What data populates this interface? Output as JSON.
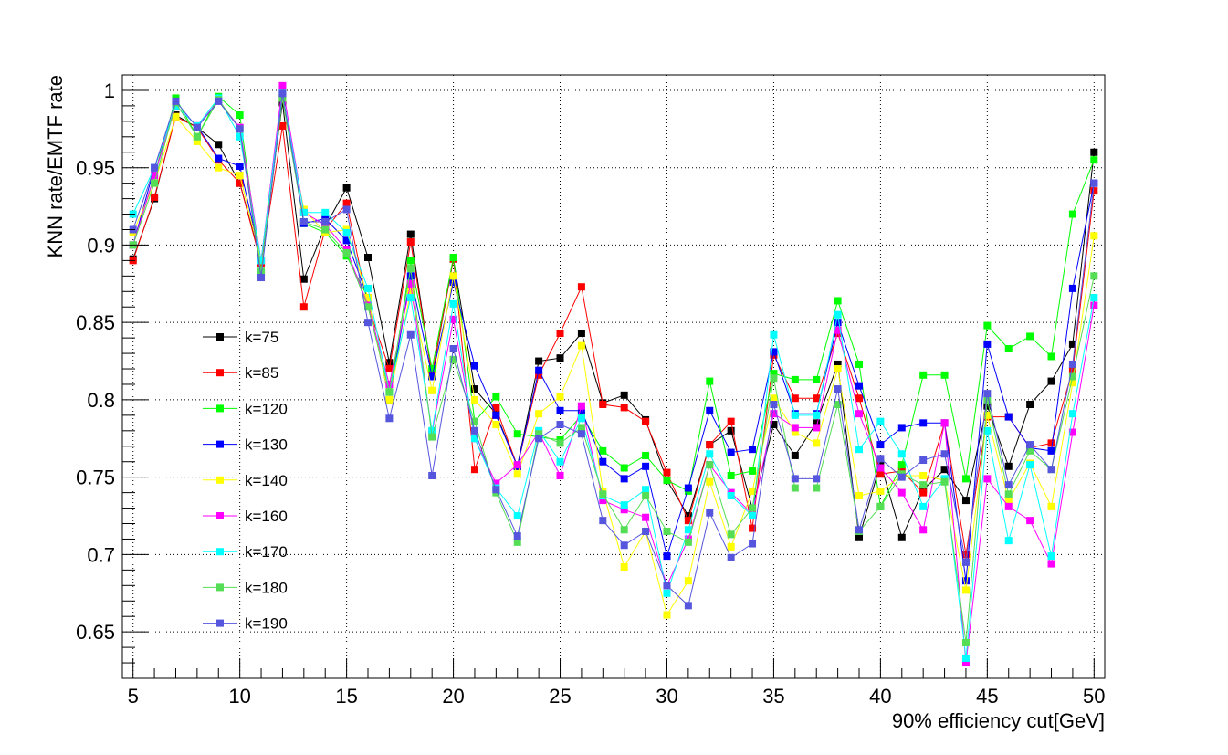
{
  "chart_data": {
    "type": "line",
    "title": "",
    "xlabel": "90% efficiency cut[GeV]",
    "ylabel": "KNN rate/EMTF rate",
    "xlim": [
      4.5,
      50.5
    ],
    "ylim": [
      0.62,
      1.01
    ],
    "grid": true,
    "legend_position": "center-left",
    "x_ticks": [
      5,
      10,
      15,
      20,
      25,
      30,
      35,
      40,
      45,
      50
    ],
    "y_ticks": [
      0.65,
      0.7,
      0.75,
      0.8,
      0.85,
      0.9,
      0.95,
      1
    ],
    "x_tick_labels": [
      "5",
      "10",
      "15",
      "20",
      "25",
      "30",
      "35",
      "40",
      "45",
      "50"
    ],
    "y_tick_labels": [
      "0.65",
      "0.7",
      "0.75",
      "0.8",
      "0.85",
      "0.9",
      "0.95",
      "1"
    ],
    "x": [
      5,
      6,
      7,
      8,
      9,
      10,
      11,
      12,
      13,
      14,
      15,
      16,
      17,
      18,
      19,
      20,
      21,
      22,
      23,
      24,
      25,
      26,
      27,
      28,
      29,
      30,
      31,
      32,
      33,
      34,
      35,
      36,
      37,
      38,
      39,
      40,
      41,
      42,
      43,
      44,
      45,
      46,
      47,
      48,
      49,
      50
    ],
    "series": [
      {
        "name": "k=75",
        "color": "#000000",
        "values": [
          0.891,
          0.93,
          0.984,
          0.976,
          0.965,
          0.94,
          0.889,
          0.992,
          0.878,
          0.912,
          0.937,
          0.892,
          0.824,
          0.907,
          0.815,
          0.891,
          0.807,
          0.791,
          0.757,
          0.825,
          0.827,
          0.843,
          0.798,
          0.803,
          0.787,
          0.748,
          0.725,
          0.771,
          0.78,
          0.73,
          0.784,
          0.764,
          0.785,
          0.823,
          0.711,
          0.759,
          0.711,
          0.742,
          0.755,
          0.735,
          0.796,
          0.757,
          0.797,
          0.812,
          0.836,
          0.96
        ]
      },
      {
        "name": "k=85",
        "color": "#ff0000",
        "values": [
          0.89,
          0.931,
          0.983,
          0.976,
          0.955,
          0.94,
          0.888,
          0.977,
          0.86,
          0.91,
          0.927,
          0.861,
          0.82,
          0.902,
          0.816,
          0.891,
          0.755,
          0.795,
          0.757,
          0.816,
          0.843,
          0.873,
          0.797,
          0.795,
          0.786,
          0.753,
          0.722,
          0.771,
          0.786,
          0.717,
          0.829,
          0.801,
          0.801,
          0.843,
          0.801,
          0.752,
          0.754,
          0.74,
          0.785,
          0.7,
          0.789,
          0.789,
          0.769,
          0.772,
          0.819,
          0.935
        ]
      },
      {
        "name": "k=120",
        "color": "#00ff00",
        "values": [
          0.9,
          0.945,
          0.995,
          0.97,
          0.996,
          0.984,
          0.882,
          0.995,
          0.914,
          0.908,
          0.893,
          0.866,
          0.8,
          0.89,
          0.82,
          0.892,
          0.786,
          0.802,
          0.778,
          0.776,
          0.774,
          0.79,
          0.767,
          0.756,
          0.764,
          0.748,
          0.741,
          0.812,
          0.751,
          0.754,
          0.817,
          0.813,
          0.813,
          0.864,
          0.823,
          0.731,
          0.758,
          0.816,
          0.816,
          0.749,
          0.848,
          0.833,
          0.841,
          0.828,
          0.92,
          0.955
        ]
      },
      {
        "name": "k=130",
        "color": "#0000ff",
        "values": [
          0.9,
          0.95,
          0.99,
          0.977,
          0.956,
          0.951,
          0.89,
          0.998,
          0.914,
          0.917,
          0.903,
          0.866,
          0.8,
          0.88,
          0.815,
          0.876,
          0.822,
          0.79,
          0.757,
          0.819,
          0.793,
          0.793,
          0.76,
          0.749,
          0.757,
          0.699,
          0.743,
          0.793,
          0.766,
          0.768,
          0.831,
          0.791,
          0.791,
          0.85,
          0.809,
          0.771,
          0.782,
          0.785,
          0.785,
          0.683,
          0.836,
          0.789,
          0.769,
          0.767,
          0.872,
          0.94
        ]
      },
      {
        "name": "k=140",
        "color": "#ffff00",
        "values": [
          0.908,
          0.94,
          0.983,
          0.967,
          0.95,
          0.945,
          0.89,
          0.995,
          0.923,
          0.908,
          0.91,
          0.866,
          0.8,
          0.87,
          0.806,
          0.88,
          0.8,
          0.784,
          0.752,
          0.791,
          0.802,
          0.835,
          0.741,
          0.692,
          0.715,
          0.661,
          0.683,
          0.747,
          0.705,
          0.741,
          0.801,
          0.779,
          0.772,
          0.82,
          0.738,
          0.741,
          0.751,
          0.751,
          0.748,
          0.677,
          0.79,
          0.735,
          0.759,
          0.731,
          0.811,
          0.906
        ]
      },
      {
        "name": "k=160",
        "color": "#ff00ff",
        "values": [
          0.9,
          0.945,
          0.99,
          0.977,
          0.993,
          0.976,
          0.89,
          1.003,
          0.921,
          0.913,
          0.897,
          0.861,
          0.81,
          0.875,
          0.779,
          0.852,
          0.775,
          0.746,
          0.758,
          0.779,
          0.751,
          0.796,
          0.735,
          0.729,
          0.724,
          0.68,
          0.71,
          0.758,
          0.74,
          0.726,
          0.791,
          0.782,
          0.782,
          0.845,
          0.791,
          0.756,
          0.74,
          0.716,
          0.785,
          0.63,
          0.749,
          0.731,
          0.722,
          0.694,
          0.779,
          0.861
        ]
      },
      {
        "name": "k=170",
        "color": "#00ffff",
        "values": [
          0.92,
          0.95,
          0.99,
          0.977,
          0.995,
          0.97,
          0.89,
          0.998,
          0.921,
          0.921,
          0.908,
          0.872,
          0.805,
          0.866,
          0.78,
          0.862,
          0.775,
          0.743,
          0.725,
          0.78,
          0.76,
          0.788,
          0.738,
          0.732,
          0.742,
          0.675,
          0.716,
          0.765,
          0.738,
          0.725,
          0.842,
          0.79,
          0.79,
          0.855,
          0.768,
          0.786,
          0.765,
          0.731,
          0.749,
          0.633,
          0.78,
          0.709,
          0.758,
          0.699,
          0.791,
          0.866
        ]
      },
      {
        "name": "k=180",
        "color": "#55dd55",
        "values": [
          0.9,
          0.94,
          0.992,
          0.97,
          0.994,
          0.975,
          0.883,
          0.995,
          0.915,
          0.91,
          0.895,
          0.86,
          0.805,
          0.885,
          0.776,
          0.826,
          0.786,
          0.74,
          0.708,
          0.778,
          0.772,
          0.782,
          0.739,
          0.716,
          0.738,
          0.715,
          0.708,
          0.758,
          0.713,
          0.73,
          0.814,
          0.743,
          0.743,
          0.797,
          0.715,
          0.731,
          0.752,
          0.745,
          0.747,
          0.643,
          0.8,
          0.739,
          0.767,
          0.755,
          0.815,
          0.88
        ]
      },
      {
        "name": "k=190",
        "color": "#5555dd",
        "values": [
          0.91,
          0.95,
          0.993,
          0.976,
          0.993,
          0.975,
          0.879,
          0.998,
          0.915,
          0.915,
          0.923,
          0.85,
          0.788,
          0.842,
          0.751,
          0.833,
          0.78,
          0.742,
          0.712,
          0.775,
          0.784,
          0.778,
          0.722,
          0.706,
          0.715,
          0.68,
          0.667,
          0.727,
          0.698,
          0.707,
          0.797,
          0.749,
          0.749,
          0.807,
          0.716,
          0.762,
          0.75,
          0.761,
          0.765,
          0.695,
          0.804,
          0.745,
          0.771,
          0.755,
          0.823,
          0.94
        ]
      }
    ]
  }
}
